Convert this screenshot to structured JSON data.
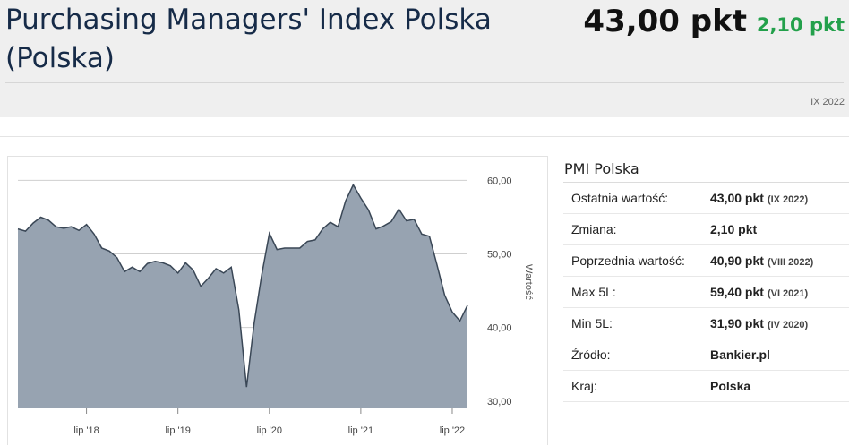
{
  "header": {
    "title": "Purchasing Managers' Index Polska (Polska)",
    "value": "43,00 pkt",
    "change": "2,10 pkt",
    "period": "IX 2022",
    "change_color": "#23a04b"
  },
  "panel": {
    "title": "PMI Polska",
    "rows": [
      {
        "label": "Ostatnia wartość:",
        "value": "43,00 pkt",
        "sub": "(IX 2022)"
      },
      {
        "label": "Zmiana:",
        "value": "2,10 pkt",
        "sub": ""
      },
      {
        "label": "Poprzednia wartość:",
        "value": "40,90 pkt",
        "sub": "(VIII 2022)"
      },
      {
        "label": "Max 5L:",
        "value": "59,40 pkt",
        "sub": "(VI 2021)"
      },
      {
        "label": "Min 5L:",
        "value": "31,90 pkt",
        "sub": "(IV 2020)"
      },
      {
        "label": "Źródło:",
        "value": "Bankier.pl",
        "sub": ""
      },
      {
        "label": "Kraj:",
        "value": "Polska",
        "sub": ""
      }
    ]
  },
  "chart_data": {
    "type": "area",
    "ylabel": "Wartość",
    "ylim": [
      29,
      62
    ],
    "yticks": [
      30,
      40,
      50,
      60
    ],
    "ytick_labels": [
      "30,00",
      "40,00",
      "50,00",
      "60,00"
    ],
    "xticks": [
      {
        "label": "lip '18",
        "at": "2018-07"
      },
      {
        "label": "lip '19",
        "at": "2019-07"
      },
      {
        "label": "lip '20",
        "at": "2020-07"
      },
      {
        "label": "lip '21",
        "at": "2021-07"
      },
      {
        "label": "lip '22",
        "at": "2022-07"
      }
    ],
    "grid": true,
    "fill_color": "#97a3b1",
    "line_color": "#3a4756",
    "x": [
      "2017-10",
      "2017-11",
      "2017-12",
      "2018-01",
      "2018-02",
      "2018-03",
      "2018-04",
      "2018-05",
      "2018-06",
      "2018-07",
      "2018-08",
      "2018-09",
      "2018-10",
      "2018-11",
      "2018-12",
      "2019-01",
      "2019-02",
      "2019-03",
      "2019-04",
      "2019-05",
      "2019-06",
      "2019-07",
      "2019-08",
      "2019-09",
      "2019-10",
      "2019-11",
      "2019-12",
      "2020-01",
      "2020-02",
      "2020-03",
      "2020-04",
      "2020-05",
      "2020-06",
      "2020-07",
      "2020-08",
      "2020-09",
      "2020-10",
      "2020-11",
      "2020-12",
      "2021-01",
      "2021-02",
      "2021-03",
      "2021-04",
      "2021-05",
      "2021-06",
      "2021-07",
      "2021-08",
      "2021-09",
      "2021-10",
      "2021-11",
      "2021-12",
      "2022-01",
      "2022-02",
      "2022-03",
      "2022-04",
      "2022-05",
      "2022-06",
      "2022-07",
      "2022-08",
      "2022-09"
    ],
    "values": [
      53.4,
      53.1,
      54.2,
      55.0,
      54.6,
      53.7,
      53.5,
      53.7,
      53.2,
      54.0,
      52.7,
      50.8,
      50.4,
      49.5,
      47.6,
      48.2,
      47.6,
      48.7,
      49.0,
      48.8,
      48.4,
      47.4,
      48.8,
      47.8,
      45.6,
      46.7,
      48.0,
      47.4,
      48.2,
      42.4,
      31.9,
      40.6,
      47.2,
      52.8,
      50.6,
      50.8,
      50.8,
      50.8,
      51.7,
      51.9,
      53.4,
      54.3,
      53.7,
      57.2,
      59.4,
      57.6,
      56.0,
      53.4,
      53.8,
      54.4,
      56.1,
      54.5,
      54.7,
      52.7,
      52.4,
      48.5,
      44.4,
      42.1,
      40.9,
      43.0
    ]
  }
}
